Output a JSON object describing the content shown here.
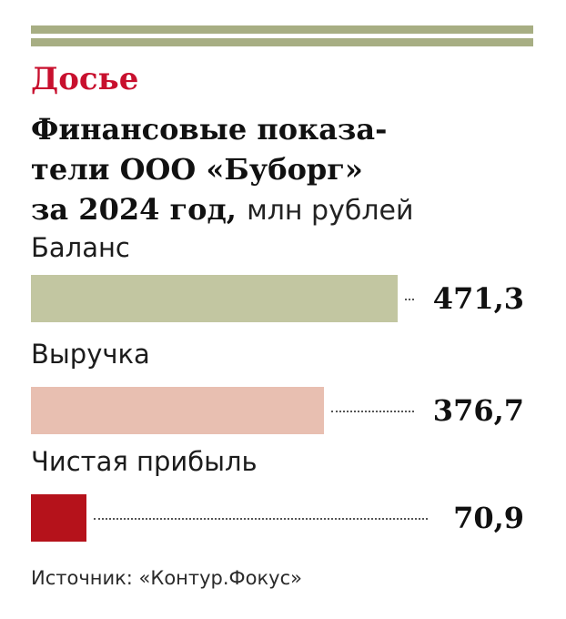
{
  "kicker": "Досье",
  "title_lines": [
    "Финансовые показа-",
    "тели ООО «Буборг»",
    "за 2024 год,"
  ],
  "unit": "млн рублей",
  "source": "Источник: «Контур.Фокус»",
  "colors": {
    "rule": "#a7ae83",
    "kicker": "#c8102e",
    "bars": [
      "#c2c6a1",
      "#e8bfb1",
      "#b5121b"
    ]
  },
  "chart_data": {
    "type": "bar",
    "orientation": "horizontal",
    "categories": [
      "Баланс",
      "Выручка",
      "Чистая прибыль"
    ],
    "values": [
      471.3,
      376.7,
      70.9
    ],
    "value_labels": [
      "471,3",
      "376,7",
      "70,9"
    ],
    "title": "Финансовые показатели ООО «Буборг» за 2024 год",
    "unit": "млн рублей",
    "grid": false,
    "legend": "none"
  }
}
